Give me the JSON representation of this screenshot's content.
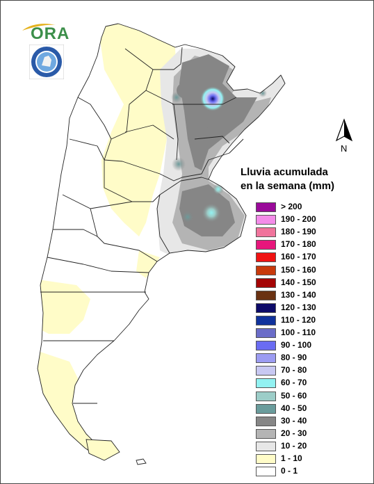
{
  "logo": {
    "text": "ORA",
    "color": "#3c8f4a",
    "accent": "#e5b21e"
  },
  "seal": {
    "icon": "seal-icon",
    "color": "#2a5aa8"
  },
  "north_arrow": {
    "label": "N"
  },
  "legend": {
    "title_line1": "Lluvia acumulada",
    "title_line2": "en la semana (mm)",
    "items": [
      {
        "label": "> 200",
        "color": "#9a0a9a"
      },
      {
        "label": "190 - 200",
        "color": "#f48ce9"
      },
      {
        "label": "180 - 190",
        "color": "#f0749c"
      },
      {
        "label": "170 - 180",
        "color": "#e7167c"
      },
      {
        "label": "160 - 170",
        "color": "#f01212"
      },
      {
        "label": "150 - 160",
        "color": "#c83a0c"
      },
      {
        "label": "140 - 150",
        "color": "#a40404"
      },
      {
        "label": "130 - 140",
        "color": "#6a3212"
      },
      {
        "label": "120 - 130",
        "color": "#0c0a68"
      },
      {
        "label": "110 - 120",
        "color": "#10329c"
      },
      {
        "label": "100 - 110",
        "color": "#6a6cc8"
      },
      {
        "label": "90 - 100",
        "color": "#6a6cf2"
      },
      {
        "label": "80 - 90",
        "color": "#9c9cf2"
      },
      {
        "label": "70 - 80",
        "color": "#c8c8f2"
      },
      {
        "label": "60 - 70",
        "color": "#92f2f2"
      },
      {
        "label": "50 - 60",
        "color": "#9ccdc8"
      },
      {
        "label": "40 - 50",
        "color": "#6a9c9c"
      },
      {
        "label": "30 - 40",
        "color": "#868686"
      },
      {
        "label": "20 - 30",
        "color": "#b4b4b4"
      },
      {
        "label": "10 - 20",
        "color": "#e7e7e7"
      },
      {
        "label": "1 - 10",
        "color": "#fffcc8"
      },
      {
        "label": "0 - 1",
        "color": "#ffffff"
      }
    ]
  }
}
